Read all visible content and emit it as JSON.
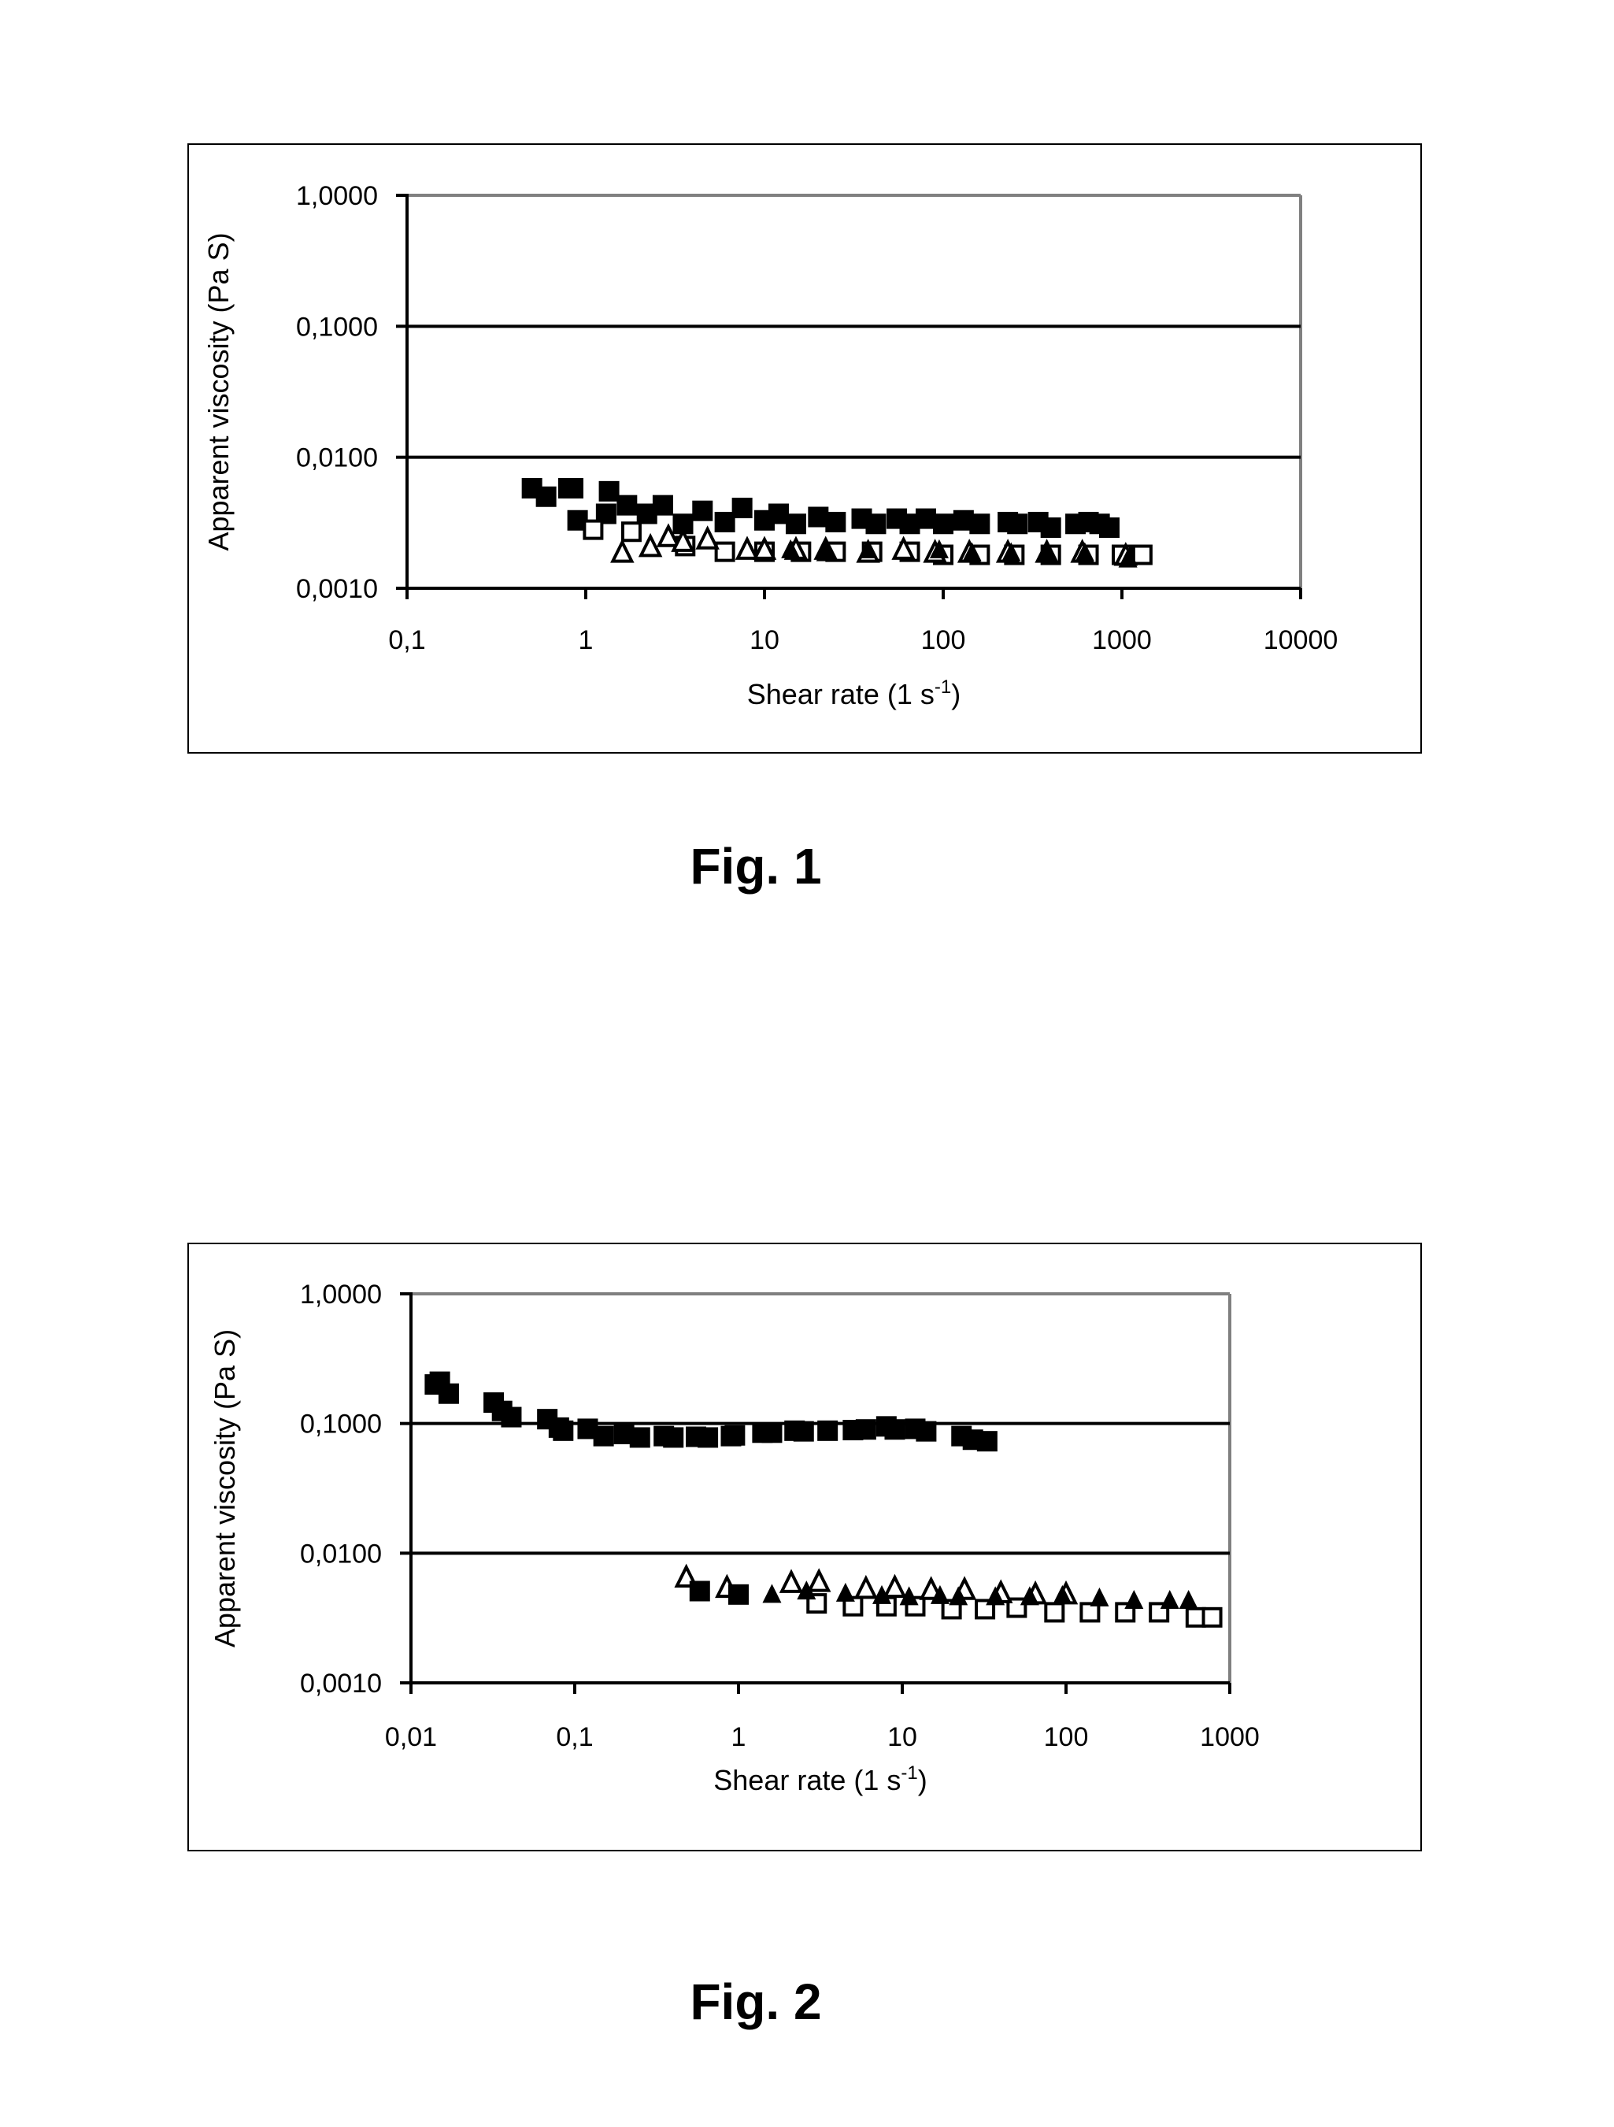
{
  "figures": [
    {
      "caption": "Fig. 1"
    },
    {
      "caption": "Fig. 2"
    }
  ],
  "colors": {
    "grid": "#000000",
    "frame": "#808080",
    "marker": "#000000"
  },
  "chart_data": [
    {
      "type": "scatter",
      "title": "",
      "xlabel": "Shear rate (1  s",
      "xlabel_superscript": "-1",
      "xlabel_suffix": ")",
      "ylabel": "Apparent viscosity (Pa S)",
      "x_scale": "log",
      "y_scale": "log",
      "xlim": [
        0.1,
        10000
      ],
      "ylim": [
        0.001,
        1
      ],
      "x_ticks": [
        0.1,
        1,
        10,
        100,
        1000,
        10000
      ],
      "x_tick_labels": [
        "0,1",
        "1",
        "10",
        "100",
        "1000",
        "10000"
      ],
      "y_ticks": [
        1,
        0.1,
        0.01,
        0.001
      ],
      "y_tick_labels": [
        "1,0000",
        "0,1000",
        "0,0100",
        "0,0010"
      ],
      "grid": "horizontal",
      "legend": "none",
      "series": [
        {
          "marker": "filled-square",
          "points": [
            [
              0.5,
              0.0058
            ],
            [
              0.6,
              0.005
            ],
            [
              0.8,
              0.0058
            ],
            [
              0.85,
              0.0058
            ],
            [
              0.9,
              0.0033
            ],
            [
              1.3,
              0.0037
            ],
            [
              1.35,
              0.0055
            ],
            [
              1.7,
              0.0043
            ],
            [
              2.2,
              0.0037
            ],
            [
              2.7,
              0.0043
            ],
            [
              3.5,
              0.0031
            ],
            [
              4.5,
              0.0039
            ],
            [
              6,
              0.0032
            ],
            [
              7.5,
              0.0041
            ],
            [
              10,
              0.0033
            ],
            [
              12,
              0.0037
            ],
            [
              15,
              0.0031
            ],
            [
              20,
              0.0035
            ],
            [
              25,
              0.0032
            ],
            [
              35,
              0.0034
            ],
            [
              42,
              0.0031
            ],
            [
              55,
              0.0034
            ],
            [
              65,
              0.0031
            ],
            [
              80,
              0.0034
            ],
            [
              100,
              0.0031
            ],
            [
              130,
              0.0033
            ],
            [
              160,
              0.0031
            ],
            [
              230,
              0.0032
            ],
            [
              260,
              0.0031
            ],
            [
              340,
              0.0032
            ],
            [
              400,
              0.0029
            ],
            [
              550,
              0.0031
            ],
            [
              650,
              0.0032
            ],
            [
              750,
              0.0031
            ],
            [
              850,
              0.0029
            ]
          ]
        },
        {
          "marker": "open-square",
          "points": [
            [
              1.1,
              0.0028
            ],
            [
              1.8,
              0.0027
            ],
            [
              3.6,
              0.0021
            ],
            [
              6,
              0.0019
            ],
            [
              10,
              0.0019
            ],
            [
              16,
              0.0019
            ],
            [
              25,
              0.0019
            ],
            [
              40,
              0.0019
            ],
            [
              65,
              0.0019
            ],
            [
              100,
              0.0018
            ],
            [
              160,
              0.0018
            ],
            [
              250,
              0.0018
            ],
            [
              400,
              0.0018
            ],
            [
              650,
              0.0018
            ],
            [
              1000,
              0.0018
            ],
            [
              1300,
              0.0018
            ]
          ]
        },
        {
          "marker": "open-triangle",
          "points": [
            [
              1.6,
              0.0019
            ],
            [
              2.3,
              0.0021
            ],
            [
              2.9,
              0.0025
            ],
            [
              3.5,
              0.0023
            ],
            [
              4.8,
              0.0024
            ],
            [
              8,
              0.002
            ],
            [
              10,
              0.002
            ],
            [
              15,
              0.002
            ],
            [
              22,
              0.002
            ],
            [
              38,
              0.0019
            ],
            [
              60,
              0.002
            ],
            [
              90,
              0.0019
            ],
            [
              140,
              0.0019
            ],
            [
              230,
              0.0019
            ],
            [
              380,
              0.0019
            ],
            [
              600,
              0.0019
            ],
            [
              1050,
              0.0018
            ]
          ]
        },
        {
          "marker": "filled-triangle",
          "points": [
            [
              14,
              0.002
            ],
            [
              22,
              0.0019
            ],
            [
              38,
              0.002
            ],
            [
              95,
              0.002
            ],
            [
              145,
              0.0019
            ],
            [
              240,
              0.0019
            ],
            [
              380,
              0.0019
            ],
            [
              620,
              0.0019
            ],
            [
              1080,
              0.0017
            ]
          ]
        }
      ]
    },
    {
      "type": "scatter",
      "title": "",
      "xlabel": "Shear rate (1  s",
      "xlabel_superscript": "-1",
      "xlabel_suffix": ")",
      "ylabel": "Apparent viscosity (Pa S)",
      "x_scale": "log",
      "y_scale": "log",
      "xlim": [
        0.01,
        1000
      ],
      "ylim": [
        0.001,
        1
      ],
      "x_ticks": [
        0.01,
        0.1,
        1,
        10,
        100,
        1000
      ],
      "x_tick_labels": [
        "0,01",
        "0,1",
        "1",
        "10",
        "100",
        "1000"
      ],
      "y_ticks": [
        1,
        0.1,
        0.01,
        0.001
      ],
      "y_tick_labels": [
        "1,0000",
        "0,1000",
        "0,0100",
        "0,0010"
      ],
      "grid": "horizontal",
      "legend": "none",
      "series": [
        {
          "marker": "filled-square",
          "points": [
            [
              0.014,
              0.2
            ],
            [
              0.015,
              0.21
            ],
            [
              0.017,
              0.17
            ],
            [
              0.032,
              0.145
            ],
            [
              0.036,
              0.125
            ],
            [
              0.041,
              0.112
            ],
            [
              0.068,
              0.108
            ],
            [
              0.08,
              0.093
            ],
            [
              0.085,
              0.088
            ],
            [
              0.12,
              0.091
            ],
            [
              0.15,
              0.08
            ],
            [
              0.2,
              0.083
            ],
            [
              0.25,
              0.078
            ],
            [
              0.35,
              0.08
            ],
            [
              0.4,
              0.078
            ],
            [
              0.55,
              0.079
            ],
            [
              0.65,
              0.078
            ],
            [
              0.9,
              0.08
            ],
            [
              0.95,
              0.081
            ],
            [
              1.4,
              0.085
            ],
            [
              1.6,
              0.085
            ],
            [
              2.2,
              0.088
            ],
            [
              2.5,
              0.087
            ],
            [
              3.5,
              0.088
            ],
            [
              5,
              0.089
            ],
            [
              6,
              0.09
            ],
            [
              8,
              0.095
            ],
            [
              9,
              0.09
            ],
            [
              12,
              0.091
            ],
            [
              14,
              0.087
            ],
            [
              23,
              0.08
            ],
            [
              27,
              0.075
            ],
            [
              33,
              0.073
            ]
          ]
        },
        {
          "marker": "open-square",
          "points": [
            [
              3,
              0.0041
            ],
            [
              5,
              0.0039
            ],
            [
              8,
              0.0039
            ],
            [
              12,
              0.0039
            ],
            [
              20,
              0.0037
            ],
            [
              32,
              0.0037
            ],
            [
              50,
              0.0038
            ],
            [
              85,
              0.0035
            ],
            [
              140,
              0.0035
            ],
            [
              230,
              0.0035
            ],
            [
              370,
              0.0035
            ],
            [
              620,
              0.0032
            ],
            [
              780,
              0.0032
            ]
          ]
        },
        {
          "marker": "open-triangle",
          "points": [
            [
              0.48,
              0.0066
            ],
            [
              0.85,
              0.0055
            ],
            [
              2.1,
              0.006
            ],
            [
              3.1,
              0.0061
            ],
            [
              6,
              0.0054
            ],
            [
              9,
              0.0055
            ],
            [
              15,
              0.0053
            ],
            [
              24,
              0.0053
            ],
            [
              40,
              0.005
            ],
            [
              65,
              0.0049
            ],
            [
              100,
              0.0049
            ]
          ]
        },
        {
          "marker": "filled-triangle",
          "points": [
            [
              1.6,
              0.0049
            ],
            [
              2.6,
              0.0052
            ],
            [
              4.5,
              0.005
            ],
            [
              7.5,
              0.0048
            ],
            [
              11,
              0.0047
            ],
            [
              17,
              0.0048
            ],
            [
              22,
              0.0047
            ],
            [
              37,
              0.0047
            ],
            [
              60,
              0.0047
            ],
            [
              95,
              0.0048
            ],
            [
              160,
              0.0046
            ],
            [
              260,
              0.0044
            ],
            [
              430,
              0.0044
            ],
            [
              560,
              0.0044
            ]
          ]
        },
        {
          "marker": "filled-square-small",
          "points": [
            [
              0.58,
              0.0051
            ],
            [
              1,
              0.0048
            ]
          ]
        }
      ]
    }
  ]
}
